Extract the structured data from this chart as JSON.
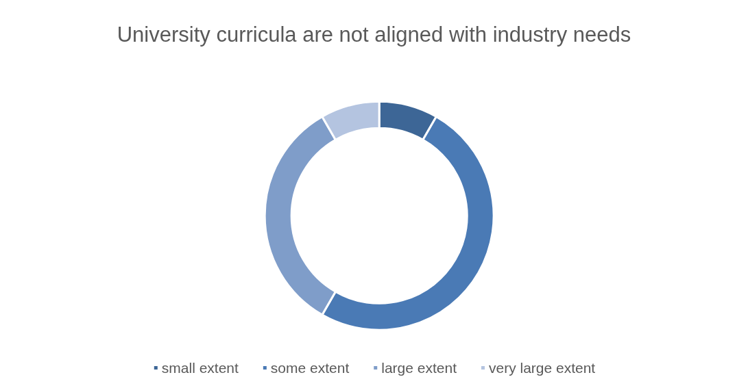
{
  "chart_data": {
    "type": "donut",
    "title": "University curricula are not aligned with industry needs",
    "categories": [
      "small extent",
      "some extent",
      "large extent",
      "very large extent"
    ],
    "values": [
      8.3,
      50,
      33.4,
      8.3
    ],
    "colors": [
      "#3d6696",
      "#4a7ab5",
      "#7f9dc9",
      "#b4c4e0"
    ],
    "legend": "bottom"
  }
}
